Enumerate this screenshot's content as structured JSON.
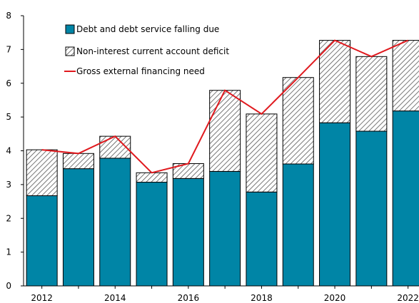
{
  "chart_data": {
    "type": "bar",
    "title": "",
    "xlabel": "",
    "ylabel": "",
    "ylim": [
      0,
      8
    ],
    "yticks": [
      "0",
      "1",
      "2",
      "3",
      "4",
      "5",
      "6",
      "7",
      "8"
    ],
    "categories": [
      "2012",
      "2013",
      "2014",
      "2015",
      "2016",
      "2017",
      "2018",
      "2019",
      "2020",
      "2021",
      "2022"
    ],
    "x_tick_labels": [
      "2012",
      "",
      "2014",
      "",
      "2016",
      "",
      "2018",
      "",
      "2020",
      "",
      "2022"
    ],
    "series": [
      {
        "name": "Debt and debt service falling due",
        "kind": "stacked-bar",
        "color": "#0085a6",
        "values": [
          2.67,
          3.47,
          3.78,
          3.07,
          3.18,
          3.39,
          2.78,
          3.61,
          4.83,
          4.58,
          5.18
        ]
      },
      {
        "name": "Non-interest current account deficit",
        "kind": "stacked-bar",
        "pattern": "diagonal-hatch",
        "color": "#555555",
        "values": [
          1.36,
          0.45,
          0.65,
          0.28,
          0.44,
          2.4,
          2.31,
          2.56,
          2.44,
          2.21,
          2.09
        ]
      },
      {
        "name": "Gross external financing need",
        "kind": "line",
        "color": "#e0191e",
        "values": [
          4.03,
          3.92,
          4.43,
          3.35,
          3.62,
          5.79,
          5.09,
          6.17,
          7.27,
          6.79,
          7.27
        ]
      }
    ],
    "legend_position": "top-left",
    "grid": false
  }
}
